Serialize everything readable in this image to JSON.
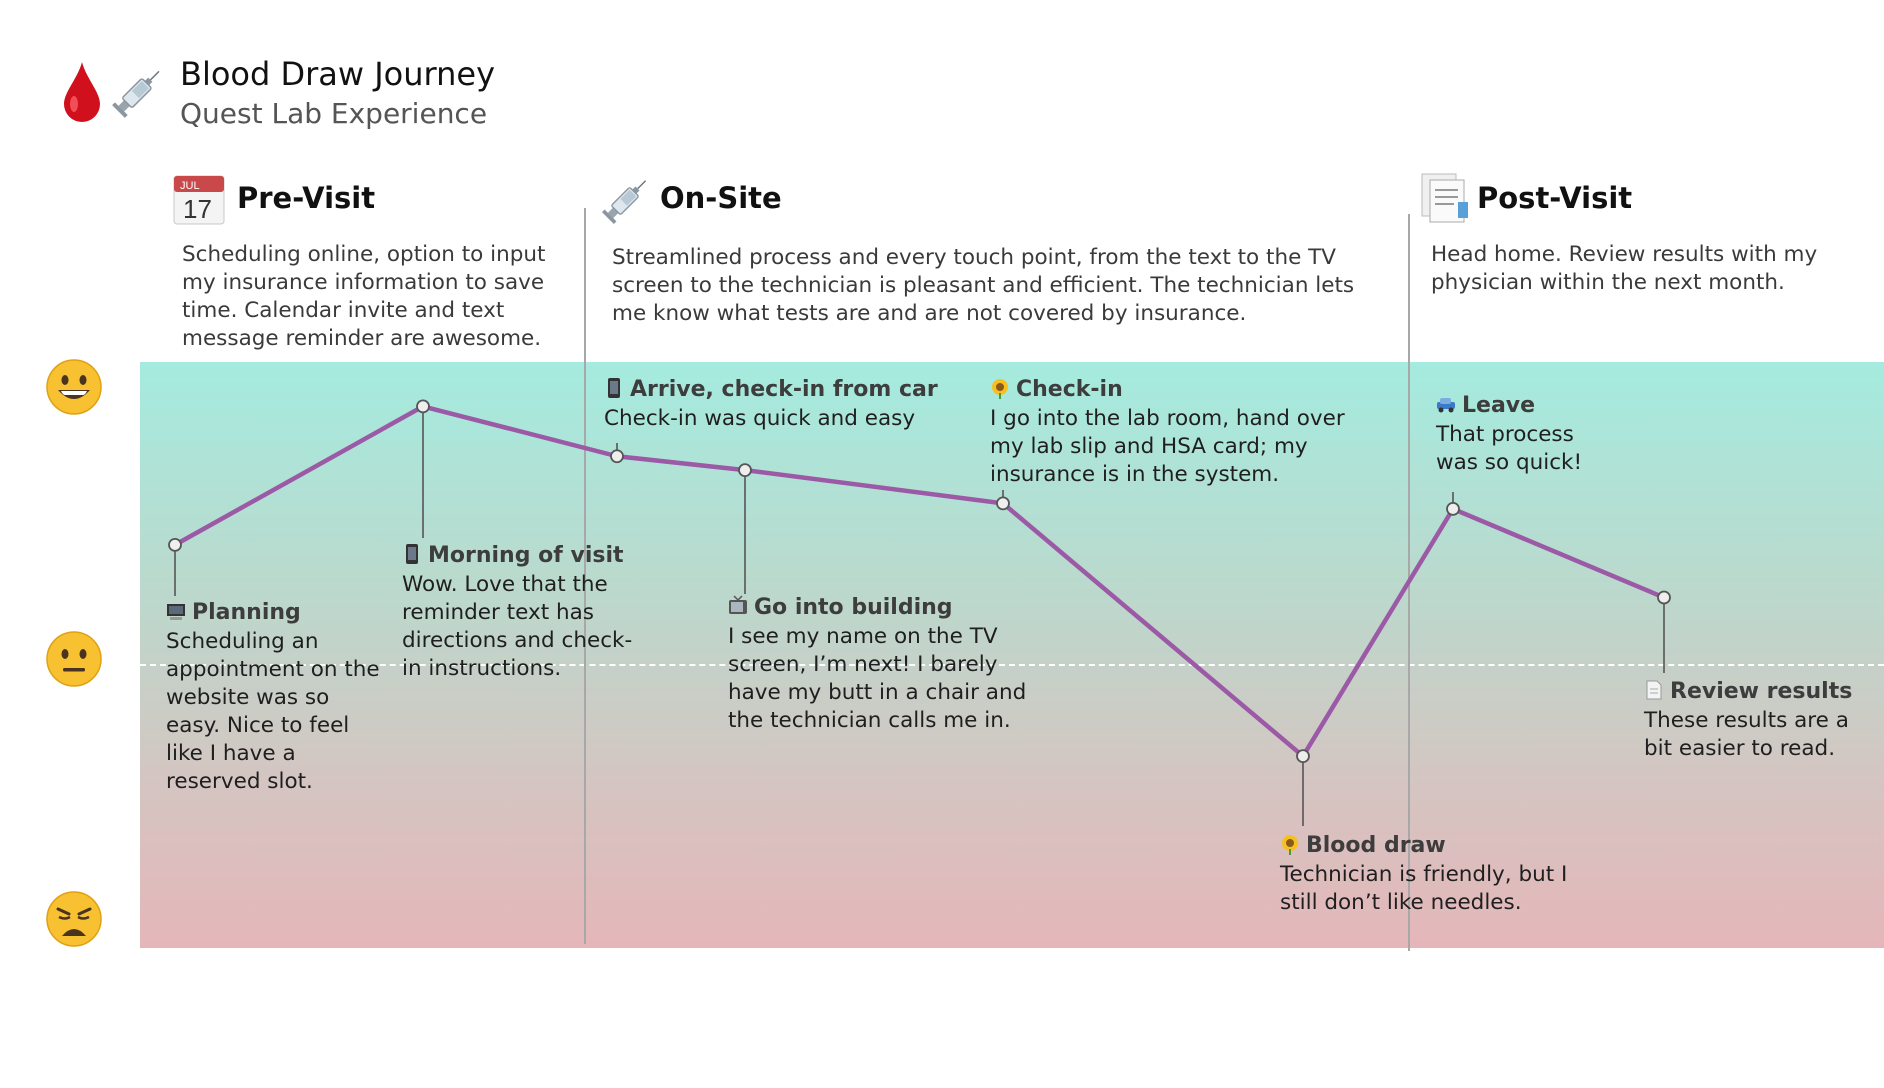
{
  "header": {
    "title": "Blood Draw Journey",
    "subtitle": "Quest Lab Experience",
    "icons": [
      "blood-drop-icon",
      "syringe-icon"
    ]
  },
  "stages": [
    {
      "title": "Pre-Visit",
      "icon": "calendar-icon",
      "calendar_month": "JUL",
      "calendar_day": "17",
      "description": "Scheduling online, option to input my insurance information to save time. Calendar invite and text message reminder are awesome."
    },
    {
      "title": "On-Site",
      "icon": "syringe-icon",
      "description": "Streamlined process and every touch point, from the text to the TV screen to the technician is pleasant and efficient. The technician lets me know what tests are and are not covered by insurance."
    },
    {
      "title": "Post-Visit",
      "icon": "documents-icon",
      "description": "Head home. Review results with my physician within the next month."
    }
  ],
  "emotion_scale": [
    {
      "name": "happy",
      "icon": "grinning-face-icon"
    },
    {
      "name": "neutral",
      "icon": "neutral-face-icon"
    },
    {
      "name": "unhappy",
      "icon": "weary-face-icon"
    }
  ],
  "touchpoints": [
    {
      "title": "Planning",
      "icon": "computer-icon",
      "text": "Scheduling an appointment on the website was so easy. Nice to feel like I have a reserved slot.",
      "sentiment": 0.43
    },
    {
      "title": "Morning of visit",
      "icon": "phone-icon",
      "text": "Wow. Love that the reminder text has directions and check-in instructions.",
      "sentiment": 0.93
    },
    {
      "title": "Arrive, check-in from car",
      "icon": "phone-icon",
      "text": "Check-in was quick and easy",
      "sentiment": 0.75
    },
    {
      "title": "Go into building",
      "icon": "tv-icon",
      "text": "I see my name on the TV screen, I’m next! I barely have my butt in a chair and the technician calls me in.",
      "sentiment": 0.7
    },
    {
      "title": "Check-in",
      "icon": "sunflower-icon",
      "text": "I go into the lab room, hand over my lab slip and HSA card; my insurance is in the system.",
      "sentiment": 0.58
    },
    {
      "title": "Blood draw",
      "icon": "sunflower-icon",
      "text": "Technician is friendly, but I still don’t like needles.",
      "sentiment": -0.36
    },
    {
      "title": "Leave",
      "icon": "car-icon",
      "text": "That process was so quick!",
      "sentiment": 0.56
    },
    {
      "title": "Review results",
      "icon": "document-icon",
      "text": "These results are a bit easier to read.",
      "sentiment": 0.24
    }
  ],
  "colors": {
    "journey_line": "#9b59a6",
    "band_top": "#a5ebdf",
    "band_bottom": "#e5b6b9",
    "divider": "#a8a8a8"
  }
}
